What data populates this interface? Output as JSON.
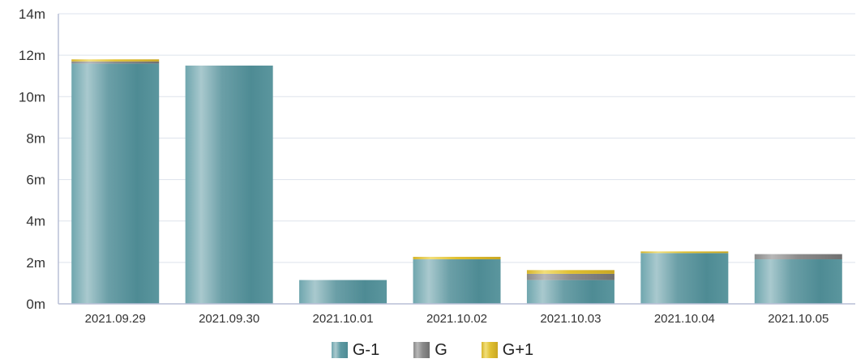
{
  "chart_data": {
    "type": "bar",
    "stacked": true,
    "title": "",
    "xlabel": "",
    "ylabel": "",
    "categories": [
      "2021.09.29",
      "2021.09.30",
      "2021.10.01",
      "2021.10.02",
      "2021.10.03",
      "2021.10.04",
      "2021.10.05"
    ],
    "series": [
      {
        "name": "G-1",
        "color": "#5e9aa3",
        "values": [
          11.6,
          11.5,
          1.15,
          2.15,
          1.15,
          2.45,
          2.15
        ]
      },
      {
        "name": "G",
        "color": "#8a8a8a",
        "values": [
          0.1,
          0,
          0,
          0,
          0.3,
          0,
          0.25
        ]
      },
      {
        "name": "G+1",
        "color": "#e0c030",
        "values": [
          0.1,
          0,
          0,
          0.12,
          0.18,
          0.08,
          0
        ]
      }
    ],
    "ylim": [
      0,
      14
    ],
    "yticks": [
      0,
      2,
      4,
      6,
      8,
      10,
      12,
      14
    ],
    "ytick_labels": [
      "0m",
      "2m",
      "4m",
      "6m",
      "8m",
      "10m",
      "12m",
      "14m"
    ],
    "grid": true,
    "legend_position": "bottom"
  }
}
